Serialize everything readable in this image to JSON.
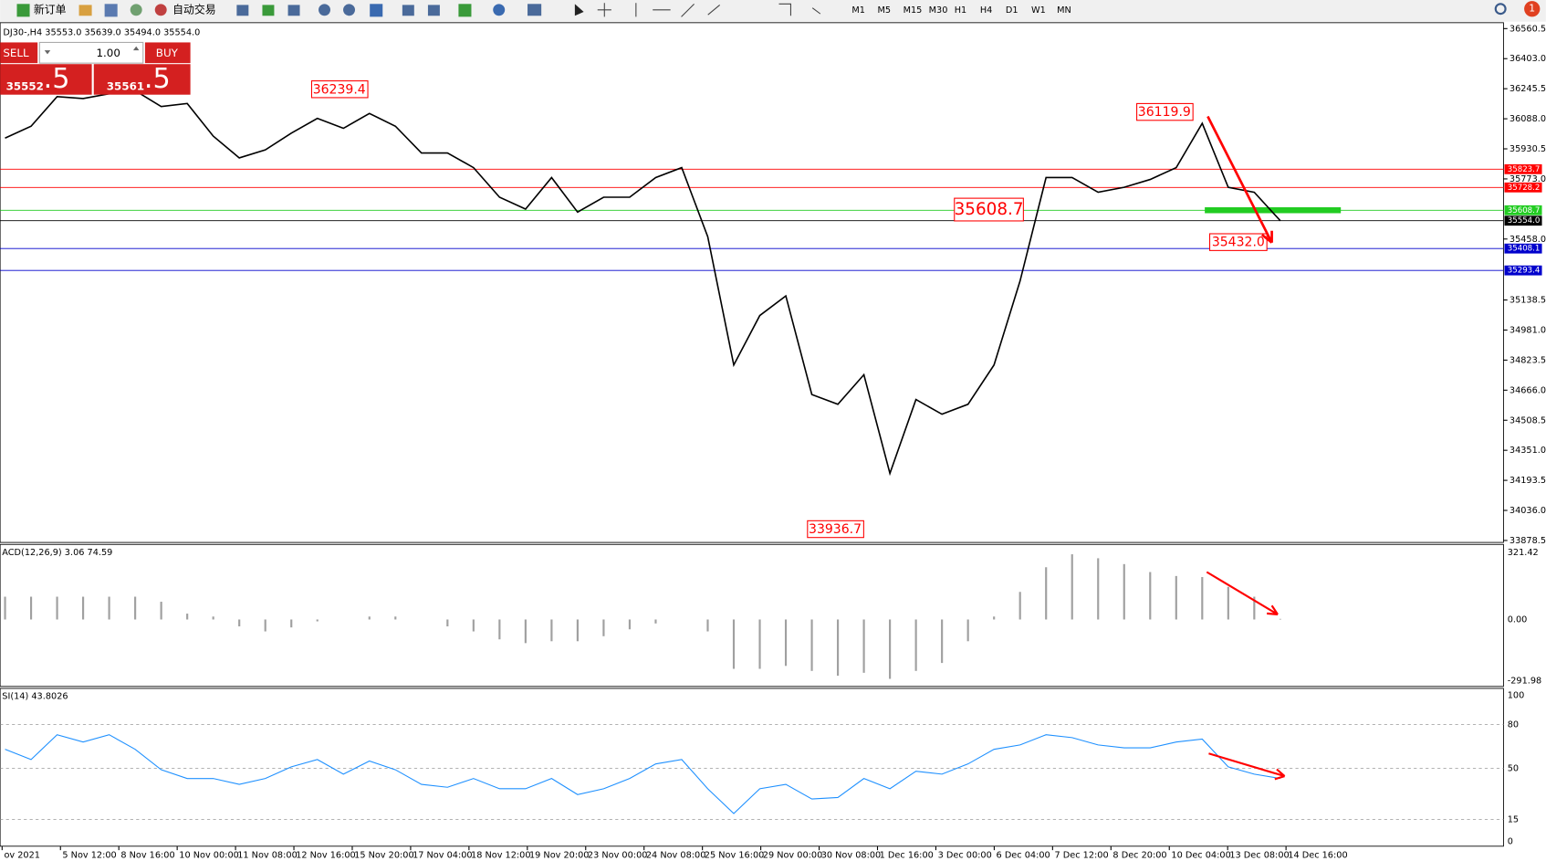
{
  "toolbar": {
    "new_order": "新订单",
    "auto_trading": "自动交易",
    "timeframes": [
      "M1",
      "M5",
      "M15",
      "M30",
      "H1",
      "H4",
      "D1",
      "W1",
      "MN"
    ],
    "notifications": "1"
  },
  "trade_panel": {
    "sell": "SELL",
    "buy": "BUY",
    "lots": "1.00",
    "sell_price_main": "35552",
    "sell_price_frac": ".5",
    "buy_price_main": "35561",
    "buy_price_frac": ".5"
  },
  "price_chart": {
    "header": "DJ30-,H4  35553.0 35639.0 35494.0 35554.0",
    "ylim": [
      33878.5,
      36560.5
    ],
    "yticks": [
      36560.5,
      {
        "value": 36403,
        "label": "36403.0"
      },
      36245.5,
      {
        "value": 36088,
        "label": "36088.0"
      },
      35930.5,
      {
        "value": 35773,
        "label": "35773.0"
      },
      {
        "value": 35458,
        "label": "35458.0"
      },
      35138.5,
      {
        "value": 34981,
        "label": "34981.0"
      },
      34823.5,
      {
        "value": 34666,
        "label": "34666.0"
      },
      34508.5,
      {
        "value": 34351,
        "label": "34351.0"
      },
      34193.5,
      {
        "value": 34036,
        "label": "34036.0"
      },
      33878.5
    ],
    "levels": [
      {
        "value": 35823.7,
        "color": "#ff0000"
      },
      {
        "value": 35728.2,
        "color": "#ff0000"
      },
      {
        "value": 35608.7,
        "color": "#22cc22"
      },
      {
        "value": 35554,
        "label": "35554.0",
        "color": "#000000"
      },
      {
        "value": 35408.1,
        "color": "#0000cc"
      },
      {
        "value": 35293.4,
        "color": "#0000cc"
      }
    ],
    "closes": [
      35987,
      36049,
      36204,
      36194,
      36219,
      36235,
      36152,
      36168,
      35997,
      35883,
      35925,
      36013,
      36090,
      36038,
      36116,
      36049,
      35909,
      35909,
      35832,
      35677,
      35615,
      35780,
      35599,
      35677,
      35677,
      35780,
      35832,
      35470,
      34798,
      35057,
      35160,
      34643,
      34592,
      34747,
      34230,
      34617,
      34540,
      34592,
      34798,
      35238,
      35780,
      35780,
      35703,
      35729,
      35770,
      35832,
      36064,
      35729,
      35703,
      35554
    ],
    "annotations": [
      "36239.4",
      "36119.9",
      "35608.7",
      "35432.0",
      "33936.7"
    ]
  },
  "macd": {
    "label": "ACD(12,26,9) 3.06 74.59",
    "ylim": [
      -291.98,
      321.42
    ],
    "yticks": [
      321.42,
      {
        "value": 0,
        "label": "0.00"
      },
      -291.98
    ],
    "histogram": [
      109,
      109,
      109,
      109,
      109,
      109,
      85,
      28,
      14,
      -33,
      -57,
      -38,
      -9,
      0,
      14,
      14,
      0,
      -33,
      -57,
      -95,
      -113,
      -104,
      -104,
      -80,
      -47,
      -19,
      0,
      -57,
      -236,
      -236,
      -222,
      -246,
      -269,
      -255,
      -284,
      -246,
      -208,
      -104,
      14,
      132,
      250,
      312,
      293,
      265,
      227,
      208,
      203,
      156,
      109,
      3
    ]
  },
  "rsi": {
    "label": "SI(14) 43.8026",
    "ylim": [
      0,
      100
    ],
    "yticks": [
      100,
      80,
      50,
      15,
      0
    ],
    "values": [
      63,
      56,
      73,
      68,
      73,
      63,
      49,
      43,
      43,
      39,
      43,
      51,
      56,
      46,
      55,
      49,
      39,
      37,
      43,
      36,
      36,
      43,
      32,
      36,
      43,
      53,
      56,
      36,
      19,
      36,
      39,
      29,
      30,
      43,
      36,
      48,
      46,
      53,
      63,
      66,
      73,
      71,
      66,
      64,
      64,
      68,
      70,
      51,
      46,
      43
    ]
  },
  "time_axis": [
    "ov 2021",
    "5 Nov 12:00",
    "8 Nov 16:00",
    "10 Nov 00:00",
    "11 Nov 08:00",
    "12 Nov 16:00",
    "15 Nov 20:00",
    "17 Nov 04:00",
    "18 Nov 12:00",
    "19 Nov 20:00",
    "23 Nov 00:00",
    "24 Nov 08:00",
    "25 Nov 16:00",
    "29 Nov 00:00",
    "30 Nov 08:00",
    "1 Dec 16:00",
    "3 Dec 00:00",
    "6 Dec 04:00",
    "7 Dec 12:00",
    "8 Dec 20:00",
    "10 Dec 04:00",
    "13 Dec 08:00",
    "14 Dec 16:00"
  ]
}
